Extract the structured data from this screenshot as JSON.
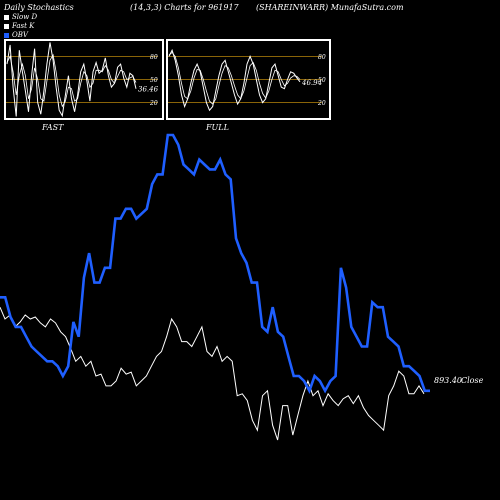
{
  "header": {
    "title_left": "Daily Stochastics",
    "title_mid": "(14,3,3) Charts for 961917",
    "title_right": "(SHAREINWARR) MunafaSutra.com"
  },
  "legend": [
    {
      "label": "Slow  D",
      "color": "#ffffff"
    },
    {
      "label": "Fast K",
      "color": "#ffffff"
    },
    {
      "label": "OBV",
      "color": "#1f5fff"
    }
  ],
  "panels": {
    "fast": {
      "label": "FAST",
      "readout": "36.46"
    },
    "full": {
      "label": "FULL",
      "readout": "46.94"
    },
    "levels": [
      80,
      50,
      20
    ]
  },
  "main": {
    "price_label": "893.40",
    "close_label": "Close"
  },
  "colors": {
    "background": "#000000",
    "obv": "#1f5fff",
    "price": "#ffffff",
    "level_line": "#b8860b"
  },
  "chart_data": [
    {
      "type": "line",
      "panel": "FAST",
      "ylim": [
        0,
        100
      ],
      "series": [
        {
          "name": "Fast K",
          "values": [
            70,
            95,
            40,
            2,
            88,
            60,
            35,
            8,
            55,
            90,
            20,
            5,
            35,
            70,
            98,
            75,
            40,
            10,
            3,
            30,
            55,
            25,
            8,
            30,
            60,
            70,
            48,
            22,
            60,
            72,
            58,
            62,
            78,
            55,
            40,
            45,
            66,
            70,
            52,
            40,
            58,
            55,
            38
          ]
        },
        {
          "name": "Slow  D",
          "values": [
            72,
            80,
            60,
            30,
            55,
            70,
            55,
            25,
            38,
            65,
            50,
            25,
            22,
            48,
            75,
            82,
            60,
            30,
            15,
            22,
            40,
            38,
            22,
            25,
            45,
            60,
            55,
            40,
            45,
            62,
            62,
            60,
            68,
            62,
            50,
            45,
            54,
            62,
            60,
            50,
            52,
            54,
            46
          ]
        }
      ]
    },
    {
      "type": "line",
      "panel": "FULL",
      "ylim": [
        0,
        100
      ],
      "series": [
        {
          "name": "Slow K",
          "values": [
            80,
            88,
            75,
            55,
            30,
            15,
            25,
            45,
            62,
            70,
            60,
            40,
            20,
            10,
            15,
            35,
            55,
            70,
            75,
            60,
            45,
            30,
            18,
            25,
            45,
            70,
            80,
            70,
            50,
            30,
            20,
            25,
            45,
            65,
            70,
            55,
            40,
            38,
            50,
            60,
            58,
            52,
            47
          ]
        },
        {
          "name": "Slow  D",
          "values": [
            82,
            85,
            80,
            65,
            45,
            28,
            25,
            35,
            52,
            63,
            62,
            50,
            35,
            22,
            18,
            25,
            42,
            58,
            68,
            65,
            55,
            42,
            30,
            25,
            35,
            52,
            68,
            72,
            62,
            45,
            32,
            26,
            35,
            50,
            62,
            60,
            50,
            42,
            45,
            52,
            55,
            54,
            50
          ]
        }
      ]
    },
    {
      "type": "line",
      "panel": "MAIN",
      "series": [
        {
          "name": "OBV",
          "values": [
            300,
            300,
            320,
            330,
            330,
            340,
            350,
            355,
            360,
            365,
            365,
            370,
            380,
            370,
            325,
            340,
            280,
            255,
            285,
            285,
            270,
            270,
            220,
            220,
            210,
            210,
            220,
            215,
            210,
            185,
            175,
            175,
            135,
            135,
            145,
            165,
            170,
            175,
            160,
            165,
            170,
            170,
            160,
            175,
            180,
            240,
            255,
            265,
            285,
            285,
            330,
            335,
            310,
            335,
            340,
            360,
            380,
            380,
            385,
            395,
            380,
            385,
            395,
            385,
            380,
            270,
            290,
            330,
            340,
            350,
            350,
            305,
            310,
            310,
            340,
            345,
            350,
            370,
            370,
            375,
            380,
            395,
            395
          ]
        },
        {
          "name": "Price",
          "values": [
            310,
            322,
            318,
            330,
            325,
            318,
            322,
            320,
            326,
            330,
            322,
            326,
            335,
            340,
            352,
            365,
            360,
            370,
            365,
            380,
            378,
            390,
            390,
            385,
            372,
            378,
            376,
            390,
            385,
            380,
            370,
            360,
            355,
            340,
            322,
            330,
            345,
            345,
            350,
            340,
            330,
            355,
            360,
            350,
            365,
            360,
            365,
            400,
            398,
            405,
            425,
            435,
            400,
            395,
            430,
            445,
            410,
            410,
            440,
            420,
            400,
            385,
            400,
            395,
            410,
            398,
            405,
            410,
            403,
            400,
            408,
            400,
            412,
            420,
            425,
            430,
            435,
            400,
            390,
            375,
            380,
            398,
            398,
            390,
            398
          ]
        }
      ]
    }
  ]
}
